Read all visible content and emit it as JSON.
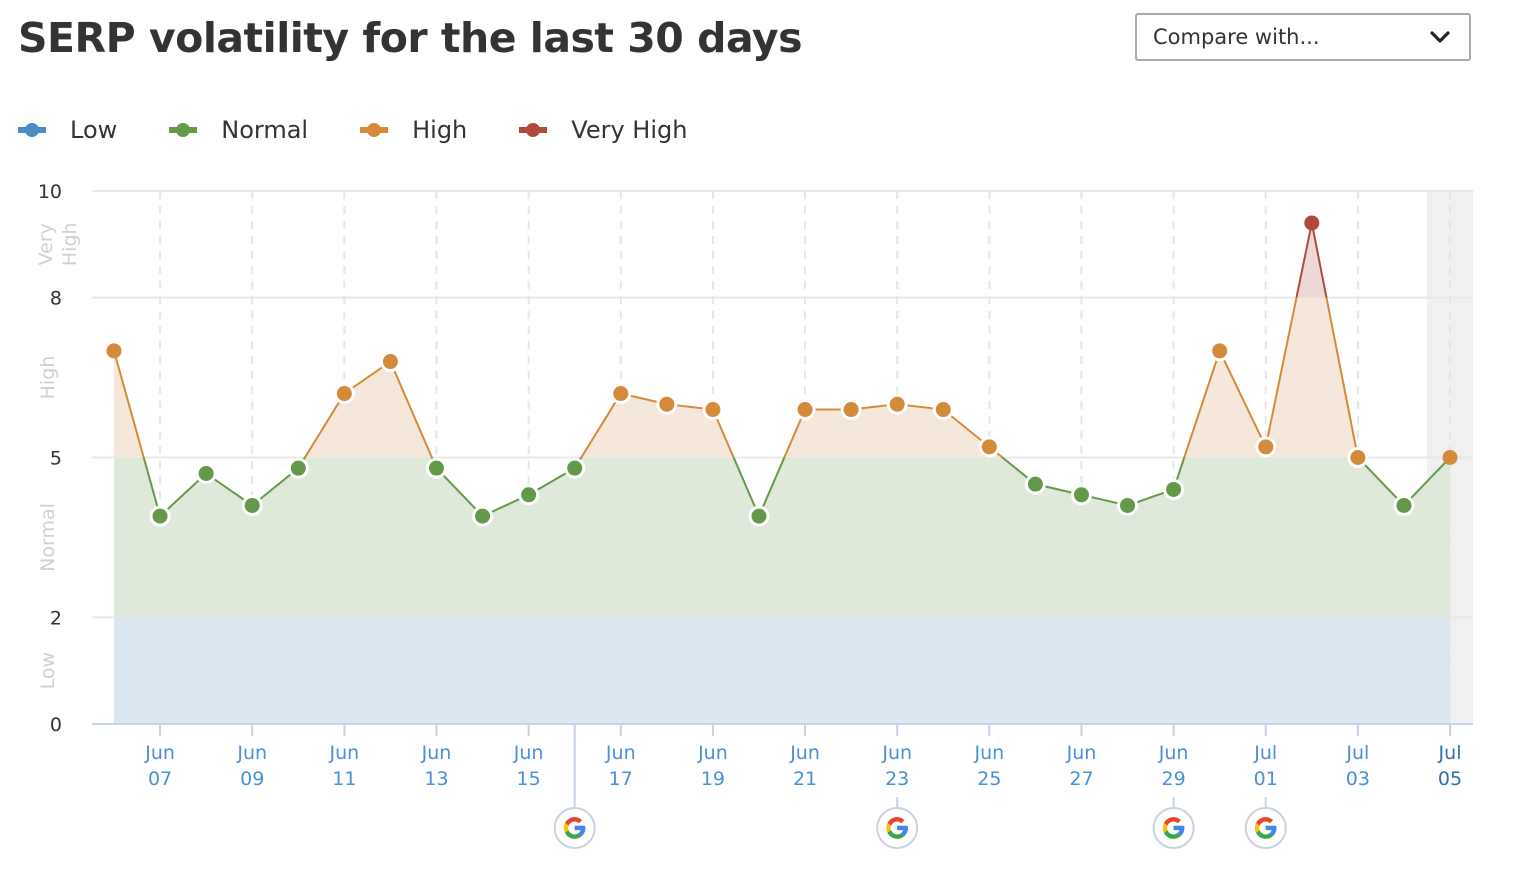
{
  "header": {
    "title": "SERP volatility for the last 30 days",
    "compare_dropdown": {
      "label": "Compare with...",
      "icon": "chevron-down-icon"
    }
  },
  "legend": [
    {
      "label": "Low",
      "color": "#4a8bc8"
    },
    {
      "label": "Normal",
      "color": "#64994a"
    },
    {
      "label": "High",
      "color": "#d38b3a"
    },
    {
      "label": "Very High",
      "color": "#b04a3d"
    }
  ],
  "colors": {
    "low_fill": "#dae6f0",
    "normal_fill": "#dfe9da",
    "high_fill": "#f5e7da",
    "very_high_fill": "#ecd9d7",
    "grid": "#e8e8e8",
    "axis": "#c5d3e6",
    "current_band": "#f0f0f0"
  },
  "chart_data": {
    "type": "line",
    "title": "SERP volatility for the last 30 days",
    "xlabel": "",
    "ylabel": "",
    "ylim": [
      0,
      10
    ],
    "yticks": [
      0,
      2,
      5,
      8,
      10
    ],
    "grid": true,
    "legend_position": "top-left",
    "bands": [
      {
        "name": "Low",
        "from": 0,
        "to": 2
      },
      {
        "name": "Normal",
        "from": 2,
        "to": 5
      },
      {
        "name": "High",
        "from": 5,
        "to": 8
      },
      {
        "name": "Very High",
        "from": 8,
        "to": 10
      }
    ],
    "x": [
      "Jun 06",
      "Jun 07",
      "Jun 08",
      "Jun 09",
      "Jun 10",
      "Jun 11",
      "Jun 12",
      "Jun 13",
      "Jun 14",
      "Jun 15",
      "Jun 16",
      "Jun 17",
      "Jun 18",
      "Jun 19",
      "Jun 20",
      "Jun 21",
      "Jun 22",
      "Jun 23",
      "Jun 24",
      "Jun 25",
      "Jun 26",
      "Jun 27",
      "Jun 28",
      "Jun 29",
      "Jun 30",
      "Jul 01",
      "Jul 02",
      "Jul 03",
      "Jul 04",
      "Jul 05"
    ],
    "series": [
      {
        "name": "SERP volatility",
        "values": [
          7.0,
          3.9,
          4.7,
          4.1,
          4.8,
          6.2,
          6.8,
          4.8,
          3.9,
          4.3,
          4.8,
          6.2,
          6.0,
          5.9,
          3.9,
          5.9,
          5.9,
          6.0,
          5.9,
          5.2,
          4.5,
          4.3,
          4.1,
          4.4,
          7.0,
          5.2,
          9.4,
          5.0,
          4.1,
          5.0
        ]
      }
    ],
    "x_tick_labels": [
      {
        "index": 1,
        "month": "Jun",
        "day": "07"
      },
      {
        "index": 3,
        "month": "Jun",
        "day": "09"
      },
      {
        "index": 5,
        "month": "Jun",
        "day": "11"
      },
      {
        "index": 7,
        "month": "Jun",
        "day": "13"
      },
      {
        "index": 9,
        "month": "Jun",
        "day": "15"
      },
      {
        "index": 11,
        "month": "Jun",
        "day": "17"
      },
      {
        "index": 13,
        "month": "Jun",
        "day": "19"
      },
      {
        "index": 15,
        "month": "Jun",
        "day": "21"
      },
      {
        "index": 17,
        "month": "Jun",
        "day": "23"
      },
      {
        "index": 19,
        "month": "Jun",
        "day": "25"
      },
      {
        "index": 21,
        "month": "Jun",
        "day": "27"
      },
      {
        "index": 23,
        "month": "Jun",
        "day": "29"
      },
      {
        "index": 25,
        "month": "Jul",
        "day": "01"
      },
      {
        "index": 27,
        "month": "Jul",
        "day": "03"
      },
      {
        "index": 29,
        "month": "Jul",
        "day": "05"
      }
    ],
    "annotations": [
      {
        "type": "google-update",
        "position_index": 10.0,
        "note": "between Jun 15 and Jun 17"
      },
      {
        "type": "google-update",
        "position_index": 17
      },
      {
        "type": "google-update",
        "position_index": 23
      },
      {
        "type": "google-update",
        "position_index": 25
      }
    ],
    "highlighted_current_day": "Jul 05"
  }
}
